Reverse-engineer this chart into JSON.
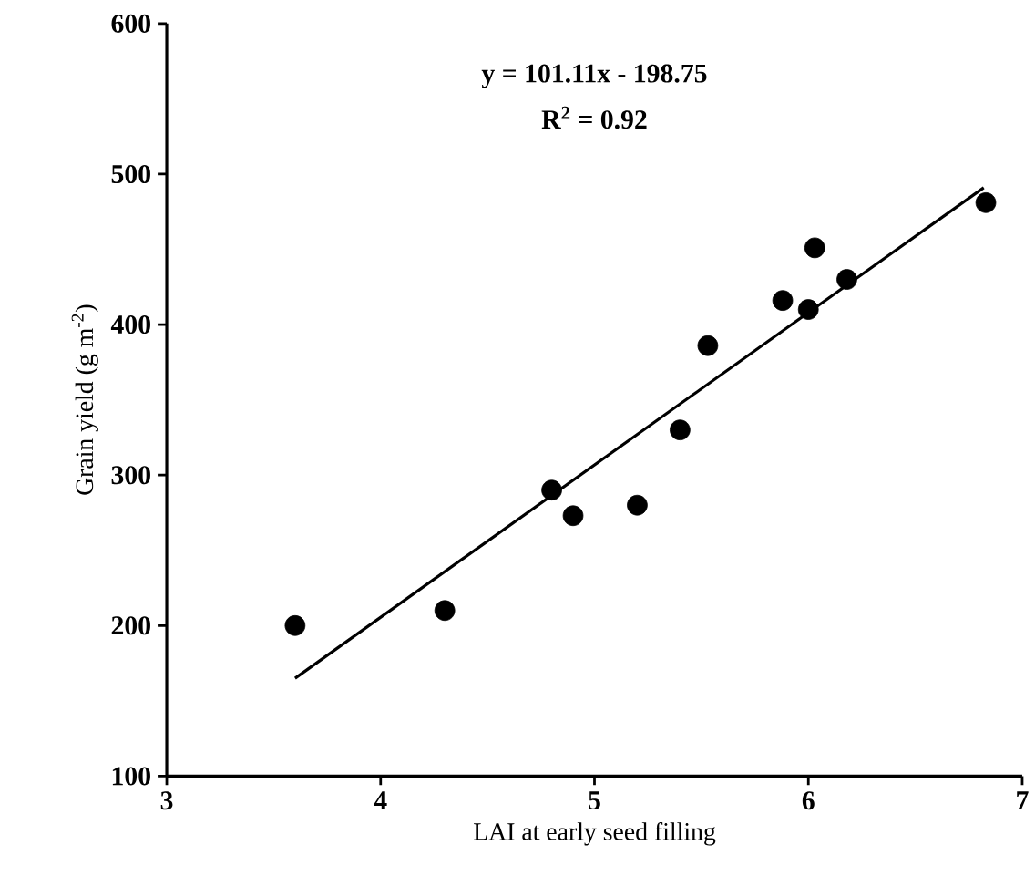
{
  "chart_data": {
    "type": "scatter",
    "xlabel": "LAI at early seed filling",
    "ylabel": "Grain yield (g m$^{-2}$)",
    "annotations": [
      "y = 101.11x - 198.75",
      "R$^{2}$ = 0.92"
    ],
    "xlim": [
      3,
      7
    ],
    "ylim": [
      100,
      600
    ],
    "xticks": [
      3,
      4,
      5,
      6,
      7
    ],
    "yticks": [
      100,
      200,
      300,
      400,
      500,
      600
    ],
    "marker": "circle",
    "series": [
      {
        "color": "#000000",
        "x": [
          3.6,
          4.3,
          4.8,
          4.9,
          5.2,
          5.4,
          5.53,
          5.88,
          6.0,
          6.03,
          6.18,
          6.83
        ],
        "values": [
          200,
          210,
          290,
          273,
          280,
          330,
          386,
          416,
          410,
          451,
          430,
          481
        ]
      },
      {
        "type": "line",
        "color": "#000000",
        "marker": "none",
        "line_style": "solid",
        "x": [
          3.6,
          6.82
        ],
        "values": [
          165,
          491
        ]
      }
    ]
  }
}
